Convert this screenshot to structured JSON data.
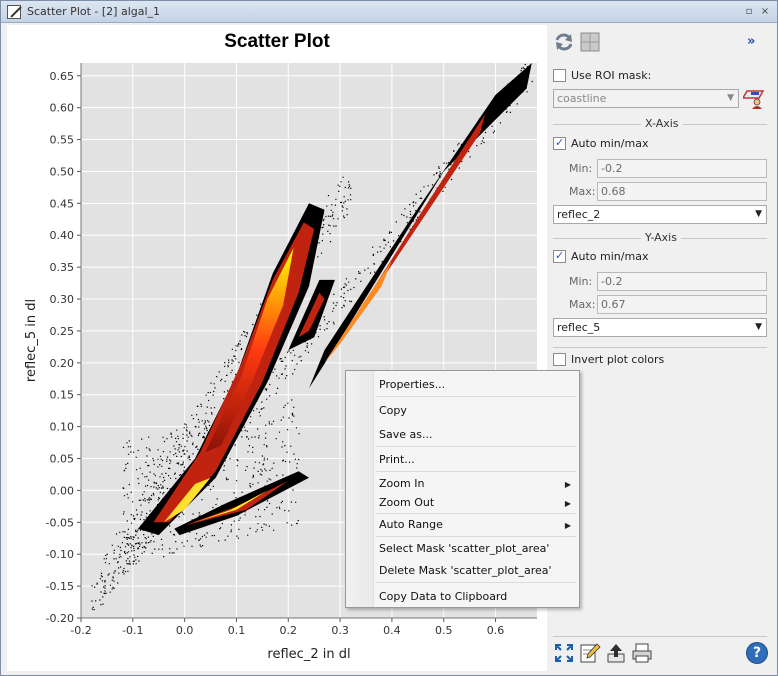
{
  "window": {
    "title": "Scatter Plot - [2] algal_1",
    "buttons": [
      "▫",
      "×"
    ]
  },
  "chart_data": {
    "type": "scatter",
    "title": "Scatter Plot",
    "xlabel": "reflec_2 in dl",
    "ylabel": "reflec_5 in dl",
    "xlim": [
      -0.2,
      0.68
    ],
    "ylim": [
      -0.2,
      0.67
    ],
    "xticks": [
      "-0.2",
      "-0.1",
      "0.0",
      "0.1",
      "0.2",
      "0.3",
      "0.4",
      "0.5",
      "0.6"
    ],
    "yticks": [
      "-0.20",
      "-0.15",
      "-0.10",
      "-0.05",
      "0.00",
      "0.05",
      "0.10",
      "0.15",
      "0.20",
      "0.25",
      "0.30",
      "0.35",
      "0.40",
      "0.45",
      "0.50",
      "0.55",
      "0.60",
      "0.65"
    ],
    "grid": true,
    "colors": {
      "background": "#e2e2e2",
      "grid": "#ffffff",
      "low": "#000000",
      "mid": "#c0230f",
      "high": "#ffff00"
    }
  },
  "side": {
    "use_roi_label": "Use ROI mask:",
    "roi_value": "coastline",
    "x_axis": {
      "title": "X-Axis",
      "auto_label": "Auto min/max",
      "min_label": "Min:",
      "min_value": "-0.2",
      "max_label": "Max:",
      "max_value": "0.68",
      "band": "reflec_2"
    },
    "y_axis": {
      "title": "Y-Axis",
      "auto_label": "Auto min/max",
      "min_label": "Min:",
      "min_value": "-0.2",
      "max_label": "Max:",
      "max_value": "0.67",
      "band": "reflec_5"
    },
    "invert_label": "Invert plot colors",
    "more": "»"
  },
  "context_menu": {
    "properties": "Properties...",
    "copy": "Copy",
    "save_as": "Save as...",
    "print": "Print...",
    "zoom_in": "Zoom In",
    "zoom_out": "Zoom Out",
    "auto_range": "Auto Range",
    "select_mask": "Select Mask 'scatter_plot_area'",
    "delete_mask": "Delete Mask 'scatter_plot_area'",
    "copy_data": "Copy Data to Clipboard"
  },
  "icons": {
    "refresh": "refresh-icon",
    "toggle": "grid-toggle-icon",
    "roi": "roi-mask-icon",
    "zoom_all": "zoom-all-icon",
    "edit": "edit-icon",
    "export": "export-icon",
    "print": "print-icon",
    "help": "help-icon",
    "help_glyph": "?"
  }
}
